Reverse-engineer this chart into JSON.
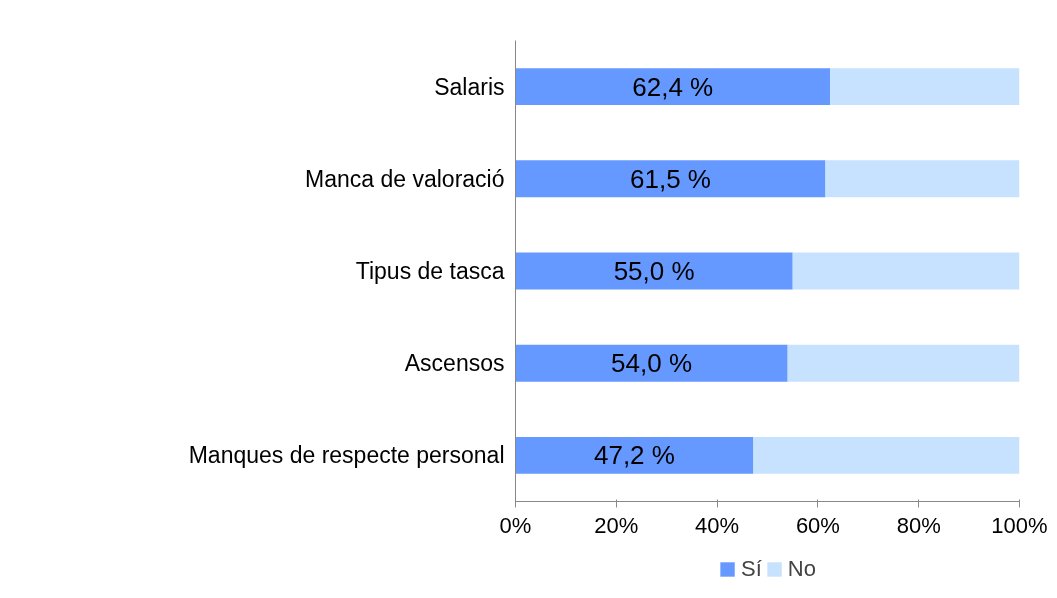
{
  "chart_data": {
    "type": "bar",
    "orientation": "horizontal",
    "stacked": true,
    "categories": [
      "Salaris",
      "Manca de valoració",
      "Tipus de tasca",
      "Ascensos",
      "Manques de respecte personal"
    ],
    "series": [
      {
        "name": "Sí",
        "color": "#6699ff",
        "values": [
          62.4,
          61.5,
          55.0,
          54.0,
          47.2
        ],
        "value_labels": [
          "62,4 %",
          "61,5 %",
          "55,0 %",
          "54,0 %",
          "47,2 %"
        ]
      },
      {
        "name": "No",
        "color": "#c6e2ff",
        "values": [
          37.6,
          38.5,
          45.0,
          46.0,
          52.8
        ]
      }
    ],
    "xlim": [
      0,
      100
    ],
    "xticks": [
      {
        "value": 0,
        "label": "0%"
      },
      {
        "value": 20,
        "label": "20%"
      },
      {
        "value": 40,
        "label": "40%"
      },
      {
        "value": 60,
        "label": "60%"
      },
      {
        "value": 80,
        "label": "80%"
      },
      {
        "value": 100,
        "label": "100%"
      }
    ],
    "grid": false,
    "legend": "bottom"
  }
}
